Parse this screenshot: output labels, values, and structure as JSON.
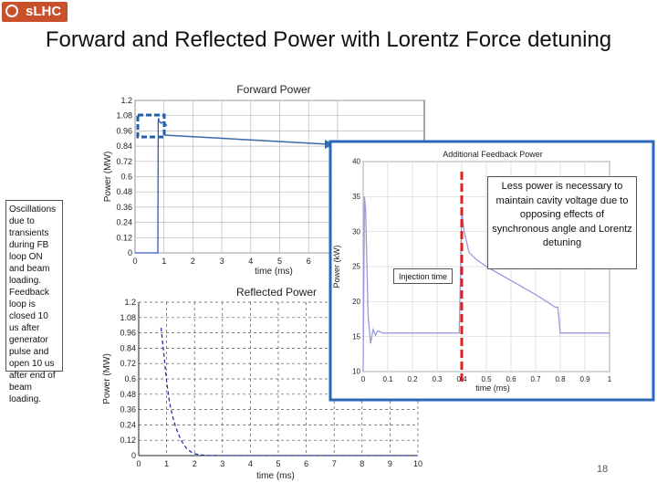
{
  "logo": {
    "text": "sLHC"
  },
  "slide": {
    "title": "Forward and Reflected Power with Lorentz Force detuning",
    "page_number": "18"
  },
  "notes": {
    "left": "Oscillations due to transients during FB loop ON and beam loading. Feedback loop is closed 10 us after generator pulse and open 10 us after end of beam loading.",
    "right": "Less power is necessary to maintain cavity voltage due to opposing effects of synchronous angle and Lorentz detuning",
    "injection": "Injection time"
  },
  "chart_data": [
    {
      "type": "line",
      "title": "Forward Power",
      "xlabel": "time (ms)",
      "ylabel": "Power (MW)",
      "xlim": [
        0,
        10
      ],
      "ylim": [
        0,
        1.2
      ],
      "x_ticks": [
        "0",
        "1",
        "2",
        "3",
        "4",
        "5",
        "6",
        "7"
      ],
      "y_ticks": [
        "0",
        "0.12",
        "0.24",
        "0.36",
        "0.48",
        "0.6",
        "0.72",
        "0.84",
        "0.96",
        "1.08",
        "1.2"
      ],
      "grid": true,
      "series": [
        {
          "color": "#3355cc",
          "style": "solid",
          "x": [
            0,
            0.79,
            0.8,
            0.81,
            0.83,
            0.86,
            0.9,
            0.95,
            1.0,
            1.1
          ],
          "y": [
            0,
            0,
            1.04,
            1.06,
            1.04,
            1.03,
            1.02,
            1.03,
            1.03,
            1.0
          ]
        }
      ]
    },
    {
      "type": "line",
      "title": "Additional Feedback Power",
      "xlabel": "time (ms)",
      "ylabel": "Power (kW)",
      "xlim": [
        0,
        1
      ],
      "ylim": [
        10,
        40
      ],
      "x_ticks": [
        "0",
        "0.1",
        "0.2",
        "0.3",
        "0.4",
        "0.5",
        "0.6",
        "0.7",
        "0.8",
        "0.9",
        "1"
      ],
      "y_ticks": [
        "10",
        "15",
        "20",
        "25",
        "30",
        "35",
        "40"
      ],
      "grid": true,
      "series": [
        {
          "color": "#9999dd",
          "style": "solid",
          "x": [
            0,
            0.005,
            0.01,
            0.02,
            0.03,
            0.04,
            0.05,
            0.06,
            0.08,
            0.1,
            0.2,
            0.3,
            0.39,
            0.4,
            0.41,
            0.43,
            0.46,
            0.5,
            0.6,
            0.7,
            0.78,
            0.79,
            0.8,
            0.9,
            1.0
          ],
          "y": [
            10,
            35,
            33,
            18,
            14,
            16,
            15.2,
            15.8,
            15.5,
            15.5,
            15.5,
            15.5,
            15.5,
            33,
            30,
            27,
            26,
            25,
            23,
            21,
            19.2,
            19.2,
            15.5,
            15.5,
            15.5
          ]
        }
      ]
    },
    {
      "type": "line",
      "title": "Reflected Power",
      "xlabel": "time (ms)",
      "ylabel": "Power (MW)",
      "xlim": [
        0,
        10
      ],
      "ylim": [
        0,
        1.2
      ],
      "x_ticks": [
        "0",
        "1",
        "2",
        "3",
        "4",
        "5",
        "6",
        "7",
        "8",
        "9",
        "10"
      ],
      "y_ticks": [
        "0",
        "0.12",
        "0.24",
        "0.36",
        "0.48",
        "0.6",
        "0.72",
        "0.84",
        "0.96",
        "1.08",
        "1.2"
      ],
      "grid": true,
      "series": [
        {
          "color": "#2233aa",
          "style": "dashed",
          "x": [
            0.8,
            0.9,
            1.0,
            1.1,
            1.2,
            1.3,
            1.4,
            1.5,
            1.6,
            1.7,
            1.8,
            1.9,
            2.0,
            2.2,
            2.5,
            3.0,
            10.0
          ],
          "y": [
            1.0,
            0.8,
            0.58,
            0.42,
            0.32,
            0.24,
            0.18,
            0.13,
            0.09,
            0.06,
            0.04,
            0.025,
            0.015,
            0.005,
            0.001,
            0.0,
            0.0
          ]
        }
      ]
    }
  ]
}
